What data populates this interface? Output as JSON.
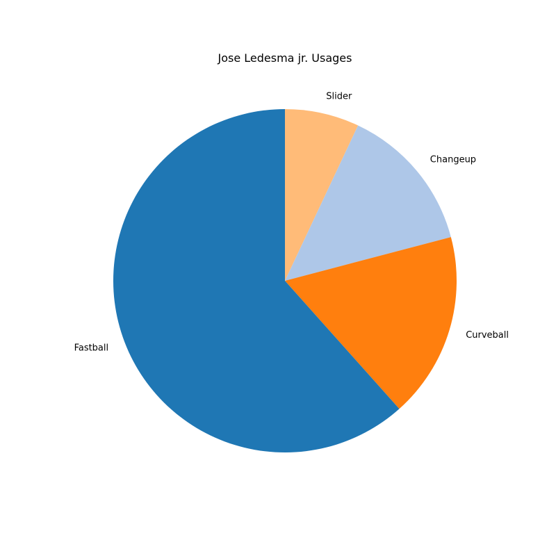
{
  "chart_data": {
    "type": "pie",
    "title": "Jose Ledesma jr. Usages",
    "start_angle_deg": 90,
    "direction": "clockwise",
    "slices": [
      {
        "label": "Slider",
        "value": 7.0,
        "color": "#ffbb78"
      },
      {
        "label": "Changeup",
        "value": 13.9,
        "color": "#aec7e8"
      },
      {
        "label": "Curveball",
        "value": 17.5,
        "color": "#ff7f0e"
      },
      {
        "label": "Fastball",
        "value": 61.6,
        "color": "#1f77b4"
      }
    ]
  }
}
